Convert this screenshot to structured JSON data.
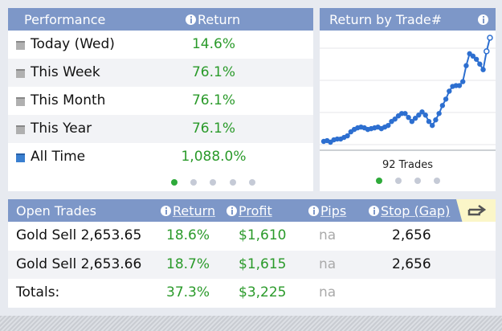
{
  "performance": {
    "header": {
      "title": "Performance",
      "return": "Return"
    },
    "rows": [
      {
        "label": "Today (Wed)",
        "value": "14.6%"
      },
      {
        "label": "This Week",
        "value": "76.1%"
      },
      {
        "label": "This Month",
        "value": "76.1%"
      },
      {
        "label": "This Year",
        "value": "76.1%"
      },
      {
        "label": "All Time",
        "value": "1,088.0%"
      }
    ]
  },
  "trade_chart": {
    "title": "Return by Trade#",
    "caption": "92 Trades",
    "values": [
      15,
      16,
      14,
      17,
      18,
      18,
      20,
      22,
      27,
      30,
      32,
      33,
      32,
      30,
      31,
      32,
      33,
      31,
      33,
      35,
      40,
      43,
      47,
      50,
      50,
      45,
      40,
      44,
      48,
      52,
      48,
      40,
      35,
      42,
      50,
      60,
      68,
      78,
      84,
      85,
      85,
      90,
      110,
      125,
      122,
      118,
      112,
      105,
      128,
      145
    ]
  },
  "open_trades": {
    "headers": [
      "Open Trades",
      "Return",
      "Profit",
      "Pips",
      "Stop (Gap)"
    ],
    "rows": [
      [
        "Gold Sell 2,653.65",
        "18.6%",
        "$1,610",
        "na",
        "2,656"
      ],
      [
        "Gold Sell 2,653.66",
        "18.7%",
        "$1,615",
        "na",
        "2,656"
      ]
    ],
    "totals": [
      "Totals:",
      "37.3%",
      "$3,225",
      "na"
    ]
  }
}
